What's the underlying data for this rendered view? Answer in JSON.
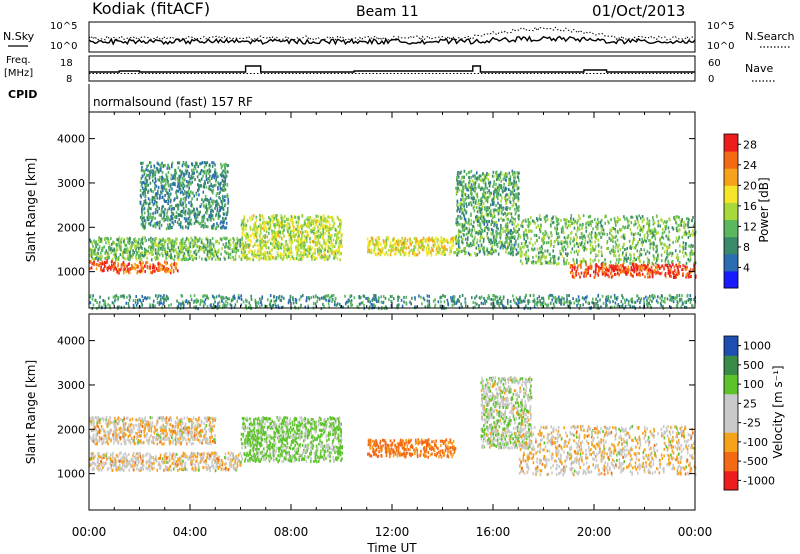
{
  "header": {
    "station": "Kodiak (fitACF)",
    "beam": "Beam 11",
    "date": "01/Oct/2013"
  },
  "top_panels": {
    "nsky": {
      "label": "N.Sky",
      "ytick_top": "10^5",
      "ytick_bottom": "10^0",
      "right_tick_top": "10^5",
      "right_tick_bottom": "10^0",
      "right_label": "N.Search"
    },
    "freq": {
      "label_line1": "Freq.",
      "label_line2": "[MHz]",
      "ytick_top": "18",
      "ytick_bottom": "8",
      "right_tick_top": "60",
      "right_tick_bottom": "0",
      "right_label": "Nave"
    },
    "cpid": {
      "label": "CPID",
      "value": "normalsound (fast) 157 RF"
    }
  },
  "chart_data": [
    {
      "type": "heatmap",
      "title": "",
      "xlabel": "",
      "ylabel": "Slant Range [km]",
      "yticks": [
        "1000",
        "2000",
        "3000",
        "4000"
      ],
      "xticks": [
        "00:00",
        "04:00",
        "08:00",
        "12:00",
        "16:00",
        "20:00",
        "00:00"
      ],
      "xlim": [
        "00:00",
        "24:00"
      ],
      "ylim": [
        180,
        4600
      ],
      "colorbar": {
        "label": "Power [dB]",
        "ticks": [
          "4",
          "8",
          "12",
          "16",
          "20",
          "24",
          "28"
        ],
        "range": [
          0,
          30
        ]
      },
      "echo_regions": [
        {
          "t": [
            0.0,
            1.0
          ],
          "range_km": [
            1050,
            1300
          ],
          "value": 28
        },
        {
          "t": [
            1.0,
            3.5
          ],
          "range_km": [
            1000,
            1250
          ],
          "value": 26
        },
        {
          "t": [
            0.0,
            6.0
          ],
          "range_km": [
            1300,
            1800
          ],
          "value": 12
        },
        {
          "t": [
            2.0,
            5.5
          ],
          "range_km": [
            2000,
            3500
          ],
          "value": 8
        },
        {
          "t": [
            6.0,
            10.0
          ],
          "range_km": [
            1300,
            2300
          ],
          "value": 16
        },
        {
          "t": [
            11.0,
            14.5
          ],
          "range_km": [
            1400,
            1800
          ],
          "value": 18
        },
        {
          "t": [
            14.5,
            17.0
          ],
          "range_km": [
            1400,
            3300
          ],
          "value": 10
        },
        {
          "t": [
            17.0,
            24.0
          ],
          "range_km": [
            1200,
            2300
          ],
          "value": 12
        },
        {
          "t": [
            19.0,
            24.0
          ],
          "range_km": [
            900,
            1200
          ],
          "value": 28
        },
        {
          "t": [
            0.0,
            24.0
          ],
          "range_km": [
            200,
            500
          ],
          "value": 8
        }
      ]
    },
    {
      "type": "heatmap",
      "title": "",
      "xlabel": "Time UT",
      "ylabel": "Slant Range [km]",
      "yticks": [
        "1000",
        "2000",
        "3000",
        "4000"
      ],
      "xticks": [
        "00:00",
        "04:00",
        "08:00",
        "12:00",
        "16:00",
        "20:00",
        "00:00"
      ],
      "xlim": [
        "00:00",
        "24:00"
      ],
      "ylim": [
        180,
        4600
      ],
      "colorbar": {
        "label": "Velocity [m s⁻¹]",
        "ticks": [
          "1000",
          "500",
          "100",
          "25",
          "-25",
          "-100",
          "-500",
          "-1000"
        ]
      },
      "echo_regions": [
        {
          "t": [
            0.0,
            6.0
          ],
          "range_km": [
            1100,
            1500
          ],
          "value": 0
        },
        {
          "t": [
            0.0,
            5.0
          ],
          "range_km": [
            1700,
            2300
          ],
          "value": 0
        },
        {
          "t": [
            6.0,
            10.0
          ],
          "range_km": [
            1300,
            2300
          ],
          "value": 150
        },
        {
          "t": [
            11.0,
            14.5
          ],
          "range_km": [
            1400,
            1800
          ],
          "value": -150
        },
        {
          "t": [
            15.5,
            17.5
          ],
          "range_km": [
            1600,
            3200
          ],
          "value": 60
        },
        {
          "t": [
            17.0,
            24.0
          ],
          "range_km": [
            1000,
            2100
          ],
          "value": 0
        }
      ]
    }
  ],
  "colors": {
    "power_scale": [
      "#1a1aff",
      "#2a6db3",
      "#3a8a6a",
      "#5cb85c",
      "#a8d83a",
      "#f5e62a",
      "#f7a21b",
      "#f46a14",
      "#ee1d1d"
    ],
    "velocity_scale": [
      "#ee1d1d",
      "#f46a14",
      "#f7a21b",
      "#c9c9c9",
      "#c9c9c9",
      "#5cc42a",
      "#3a8a4a",
      "#1e4fb0"
    ]
  }
}
